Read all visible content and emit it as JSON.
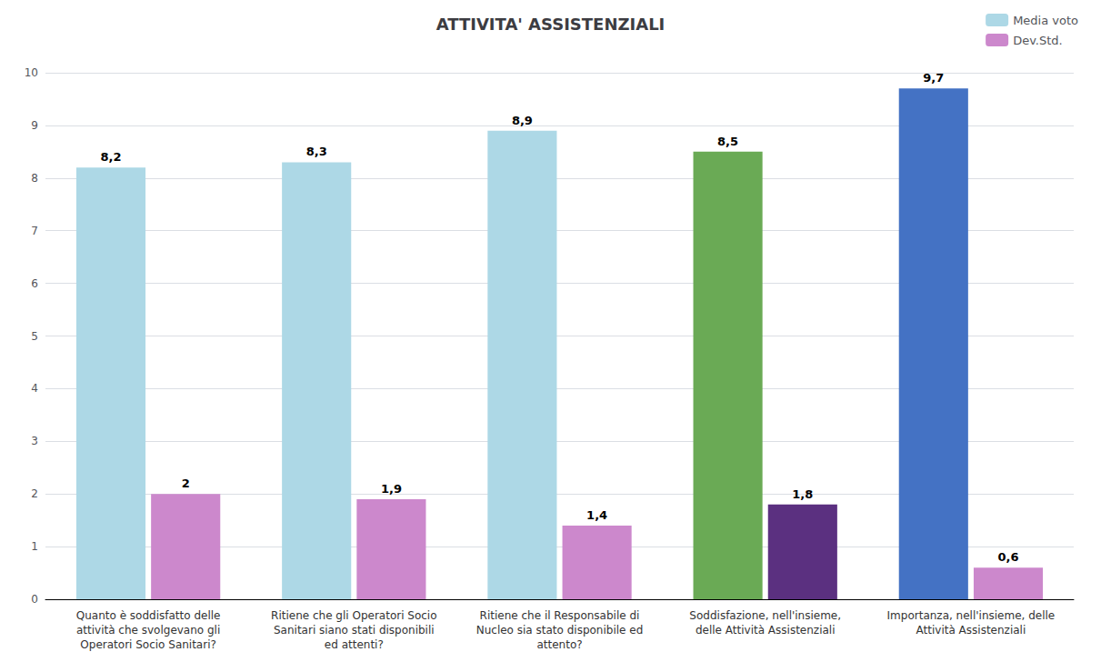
{
  "chart_data": {
    "type": "bar",
    "title": "ATTIVITA' ASSISTENZIALI",
    "categories": [
      "Quanto è soddisfatto delle\nattività che svolgevano gli\nOperatori Socio Sanitari?",
      "Ritiene che gli Operatori Socio\nSanitari siano stati disponibili\ned attenti?",
      "Ritiene che il Responsabile di\nNucleo sia stato disponibile ed\nattento?",
      "Soddisfazione, nell'insieme,\ndelle Attività Assistenziali",
      "Importanza, nell'insieme, delle\nAttività Assistenziali"
    ],
    "series": [
      {
        "name": "Media voto",
        "color": "#ADD8E6",
        "colors": [
          "#ADD8E6",
          "#ADD8E6",
          "#ADD8E6",
          "#6aaa55",
          "#4472C4"
        ],
        "values": [
          8.2,
          8.3,
          8.9,
          8.5,
          9.7
        ],
        "value_labels": [
          "8,2",
          "8,3",
          "8,9",
          "8,5",
          "9,7"
        ]
      },
      {
        "name": "Dev.Std.",
        "color": "#CC88CC",
        "colors": [
          "#CC88CC",
          "#CC88CC",
          "#CC88CC",
          "#5B3080",
          "#CC88CC"
        ],
        "values": [
          2.0,
          1.9,
          1.4,
          1.8,
          0.6
        ],
        "value_labels": [
          "2",
          "1,9",
          "1,4",
          "1,8",
          "0,6"
        ]
      }
    ],
    "ylim": [
      0,
      10
    ],
    "yticks": [
      0,
      1,
      2,
      3,
      4,
      5,
      6,
      7,
      8,
      9,
      10
    ],
    "grid": true,
    "legend": "upper right",
    "data_labels": true
  }
}
